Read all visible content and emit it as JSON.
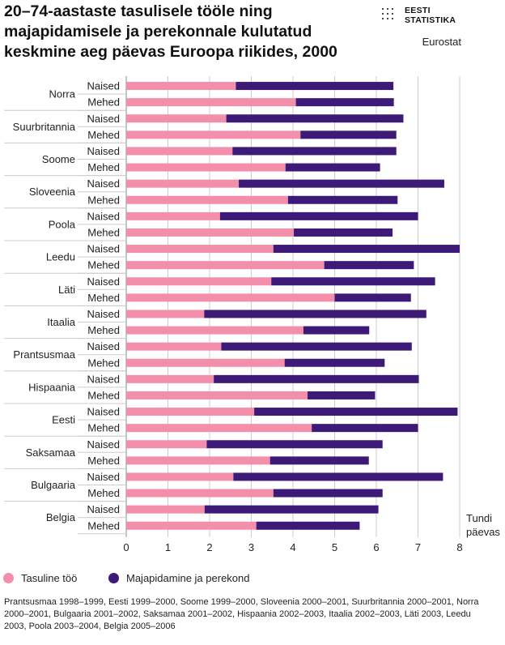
{
  "title": "20–74-aastaste tasulisele tööle ning majapidamisele ja perekonnale kulutatud keskmine aeg päevas Euroopa riikides, 2000",
  "logo": {
    "line1": "EESTI",
    "line2": "STATISTIKA"
  },
  "source": "Eurostat",
  "footnote": "Prantsusmaa 1998–1999, Eesti 1999–2000, Soome 1999–2000, Sloveenia 2000–2001, Suurbritannia 2000–2001, Norra 2000–2001, Bulgaaria 2001–2002, Saksamaa 2001–2002, Hispaania 2002–2003, Itaalia 2002–2003, Läti 2003, Leedu 2003, Poola 2003–2004, Belgia 2005–2006",
  "colors": {
    "paid": "#f48fab",
    "household": "#3d1a78",
    "grid": "#cccccc",
    "axis": "#888888"
  },
  "legend": {
    "paid": "Tasuline töö",
    "household": "Majapidamine ja perekond"
  },
  "chart_data": {
    "type": "bar",
    "orientation": "horizontal",
    "stacked": true,
    "xlabel": [
      "Tundi",
      "päevas"
    ],
    "xlim": [
      0,
      8
    ],
    "xticks": [
      0,
      1,
      2,
      3,
      4,
      5,
      6,
      7,
      8
    ],
    "grid": true,
    "group_labels": [
      "Naised",
      "Mehed"
    ],
    "series_names": [
      "Tasuline töö",
      "Majapidamine ja perekond"
    ],
    "countries": [
      {
        "name": "Norra",
        "naised": [
          2.63,
          3.78
        ],
        "mehed": [
          4.07,
          2.35
        ]
      },
      {
        "name": "Suurbritannia",
        "naised": [
          2.4,
          4.25
        ],
        "mehed": [
          4.18,
          2.3
        ]
      },
      {
        "name": "Soome",
        "naised": [
          2.55,
          3.93
        ],
        "mehed": [
          3.82,
          2.27
        ]
      },
      {
        "name": "Sloveenia",
        "naised": [
          2.7,
          4.93
        ],
        "mehed": [
          3.88,
          2.63
        ]
      },
      {
        "name": "Poola",
        "naised": [
          2.25,
          4.75
        ],
        "mehed": [
          4.02,
          2.37
        ]
      },
      {
        "name": "Leedu",
        "naised": [
          3.53,
          4.47
        ],
        "mehed": [
          4.75,
          2.15
        ]
      },
      {
        "name": "Läti",
        "naised": [
          3.48,
          3.93
        ],
        "mehed": [
          5.0,
          1.83
        ]
      },
      {
        "name": "Itaalia",
        "naised": [
          1.87,
          5.33
        ],
        "mehed": [
          4.25,
          1.58
        ]
      },
      {
        "name": "Prantsusmaa",
        "naised": [
          2.28,
          4.57
        ],
        "mehed": [
          3.8,
          2.4
        ]
      },
      {
        "name": "Hispaania",
        "naised": [
          2.1,
          4.92
        ],
        "mehed": [
          4.35,
          1.62
        ]
      },
      {
        "name": "Eesti",
        "naised": [
          3.07,
          4.88
        ],
        "mehed": [
          4.45,
          2.55
        ]
      },
      {
        "name": "Saksamaa",
        "naised": [
          1.93,
          4.22
        ],
        "mehed": [
          3.45,
          2.37
        ]
      },
      {
        "name": "Bulgaaria",
        "naised": [
          2.57,
          5.03
        ],
        "mehed": [
          3.53,
          2.62
        ]
      },
      {
        "name": "Belgia",
        "naised": [
          1.88,
          4.17
        ],
        "mehed": [
          3.12,
          2.48
        ]
      }
    ]
  }
}
